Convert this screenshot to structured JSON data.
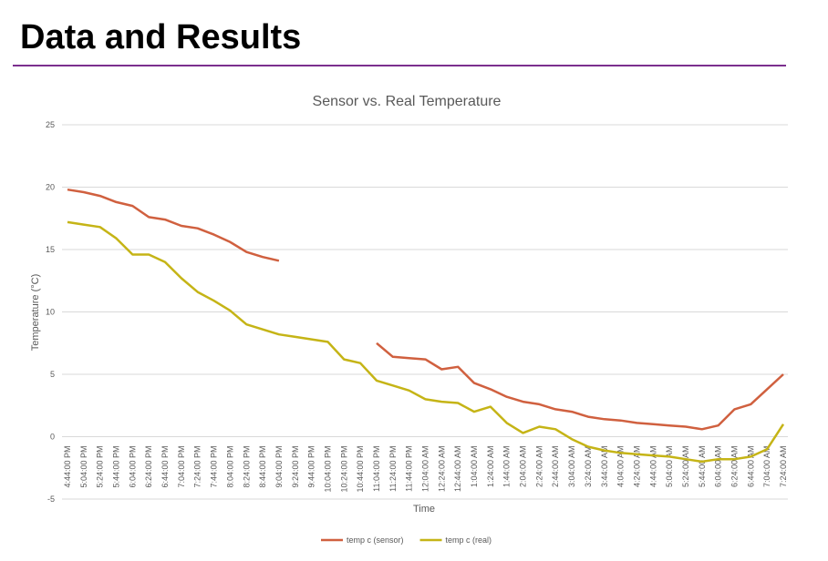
{
  "slide": {
    "title": "Data and Results"
  },
  "chart_data": {
    "type": "line",
    "title": "Sensor vs. Real Temperature",
    "x_label": "Time",
    "y_label": "Temperature (°C)",
    "categories": [
      "4:44:00 PM",
      "5:04:00 PM",
      "5:24:00 PM",
      "5:44:00 PM",
      "6:04:00 PM",
      "6:24:00 PM",
      "6:44:00 PM",
      "7:04:00 PM",
      "7:24:00 PM",
      "7:44:00 PM",
      "8:04:00 PM",
      "8:24:00 PM",
      "8:44:00 PM",
      "9:04:00 PM",
      "9:24:00 PM",
      "9:44:00 PM",
      "10:04:00 PM",
      "10:24:00 PM",
      "10:44:00 PM",
      "11:04:00 PM",
      "11:24:00 PM",
      "11:44:00 PM",
      "12:04:00 AM",
      "12:24:00 AM",
      "12:44:00 AM",
      "1:04:00 AM",
      "1:24:00 AM",
      "1:44:00 AM",
      "2:04:00 AM",
      "2:24:00 AM",
      "2:44:00 AM",
      "3:04:00 AM",
      "3:24:00 AM",
      "3:44:00 AM",
      "4:04:00 AM",
      "4:24:00 AM",
      "4:44:00 AM",
      "5:04:00 AM",
      "5:24:00 AM",
      "5:44:00 AM",
      "6:04:00 AM",
      "6:24:00 AM",
      "6:44:00 AM",
      "7:04:00 AM",
      "7:24:00 AM"
    ],
    "series": [
      {
        "name": "temp c (sensor)",
        "color": "#d0603f",
        "values": [
          19.8,
          19.6,
          19.3,
          18.8,
          18.5,
          17.6,
          17.4,
          16.9,
          16.7,
          16.2,
          15.6,
          14.8,
          14.4,
          14.1,
          null,
          null,
          null,
          null,
          null,
          7.5,
          6.4,
          6.3,
          6.2,
          5.4,
          5.6,
          4.3,
          3.8,
          3.2,
          2.8,
          2.6,
          2.2,
          2.0,
          1.6,
          1.4,
          1.3,
          1.1,
          1.0,
          0.9,
          0.8,
          0.6,
          0.9,
          2.2,
          2.6,
          3.8,
          5.0
        ]
      },
      {
        "name": "temp c (real)",
        "color": "#c5b416",
        "values": [
          17.2,
          17.0,
          16.8,
          15.9,
          14.6,
          14.6,
          14.0,
          12.7,
          11.6,
          10.9,
          10.1,
          9.0,
          8.6,
          8.2,
          8.0,
          7.8,
          7.6,
          6.2,
          5.9,
          4.5,
          4.1,
          3.7,
          3.0,
          2.8,
          2.7,
          2.0,
          2.4,
          1.1,
          0.3,
          0.8,
          0.6,
          -0.2,
          -0.8,
          -1.1,
          -1.3,
          -1.4,
          -1.5,
          -1.6,
          -1.8,
          -2.0,
          -1.8,
          -1.8,
          -1.6,
          -1.0,
          1.0
        ]
      }
    ],
    "ylim": [
      -5,
      25
    ],
    "yticks": [
      -5,
      0,
      5,
      10,
      15,
      20,
      25
    ],
    "grid": true,
    "legend": "bottom"
  }
}
